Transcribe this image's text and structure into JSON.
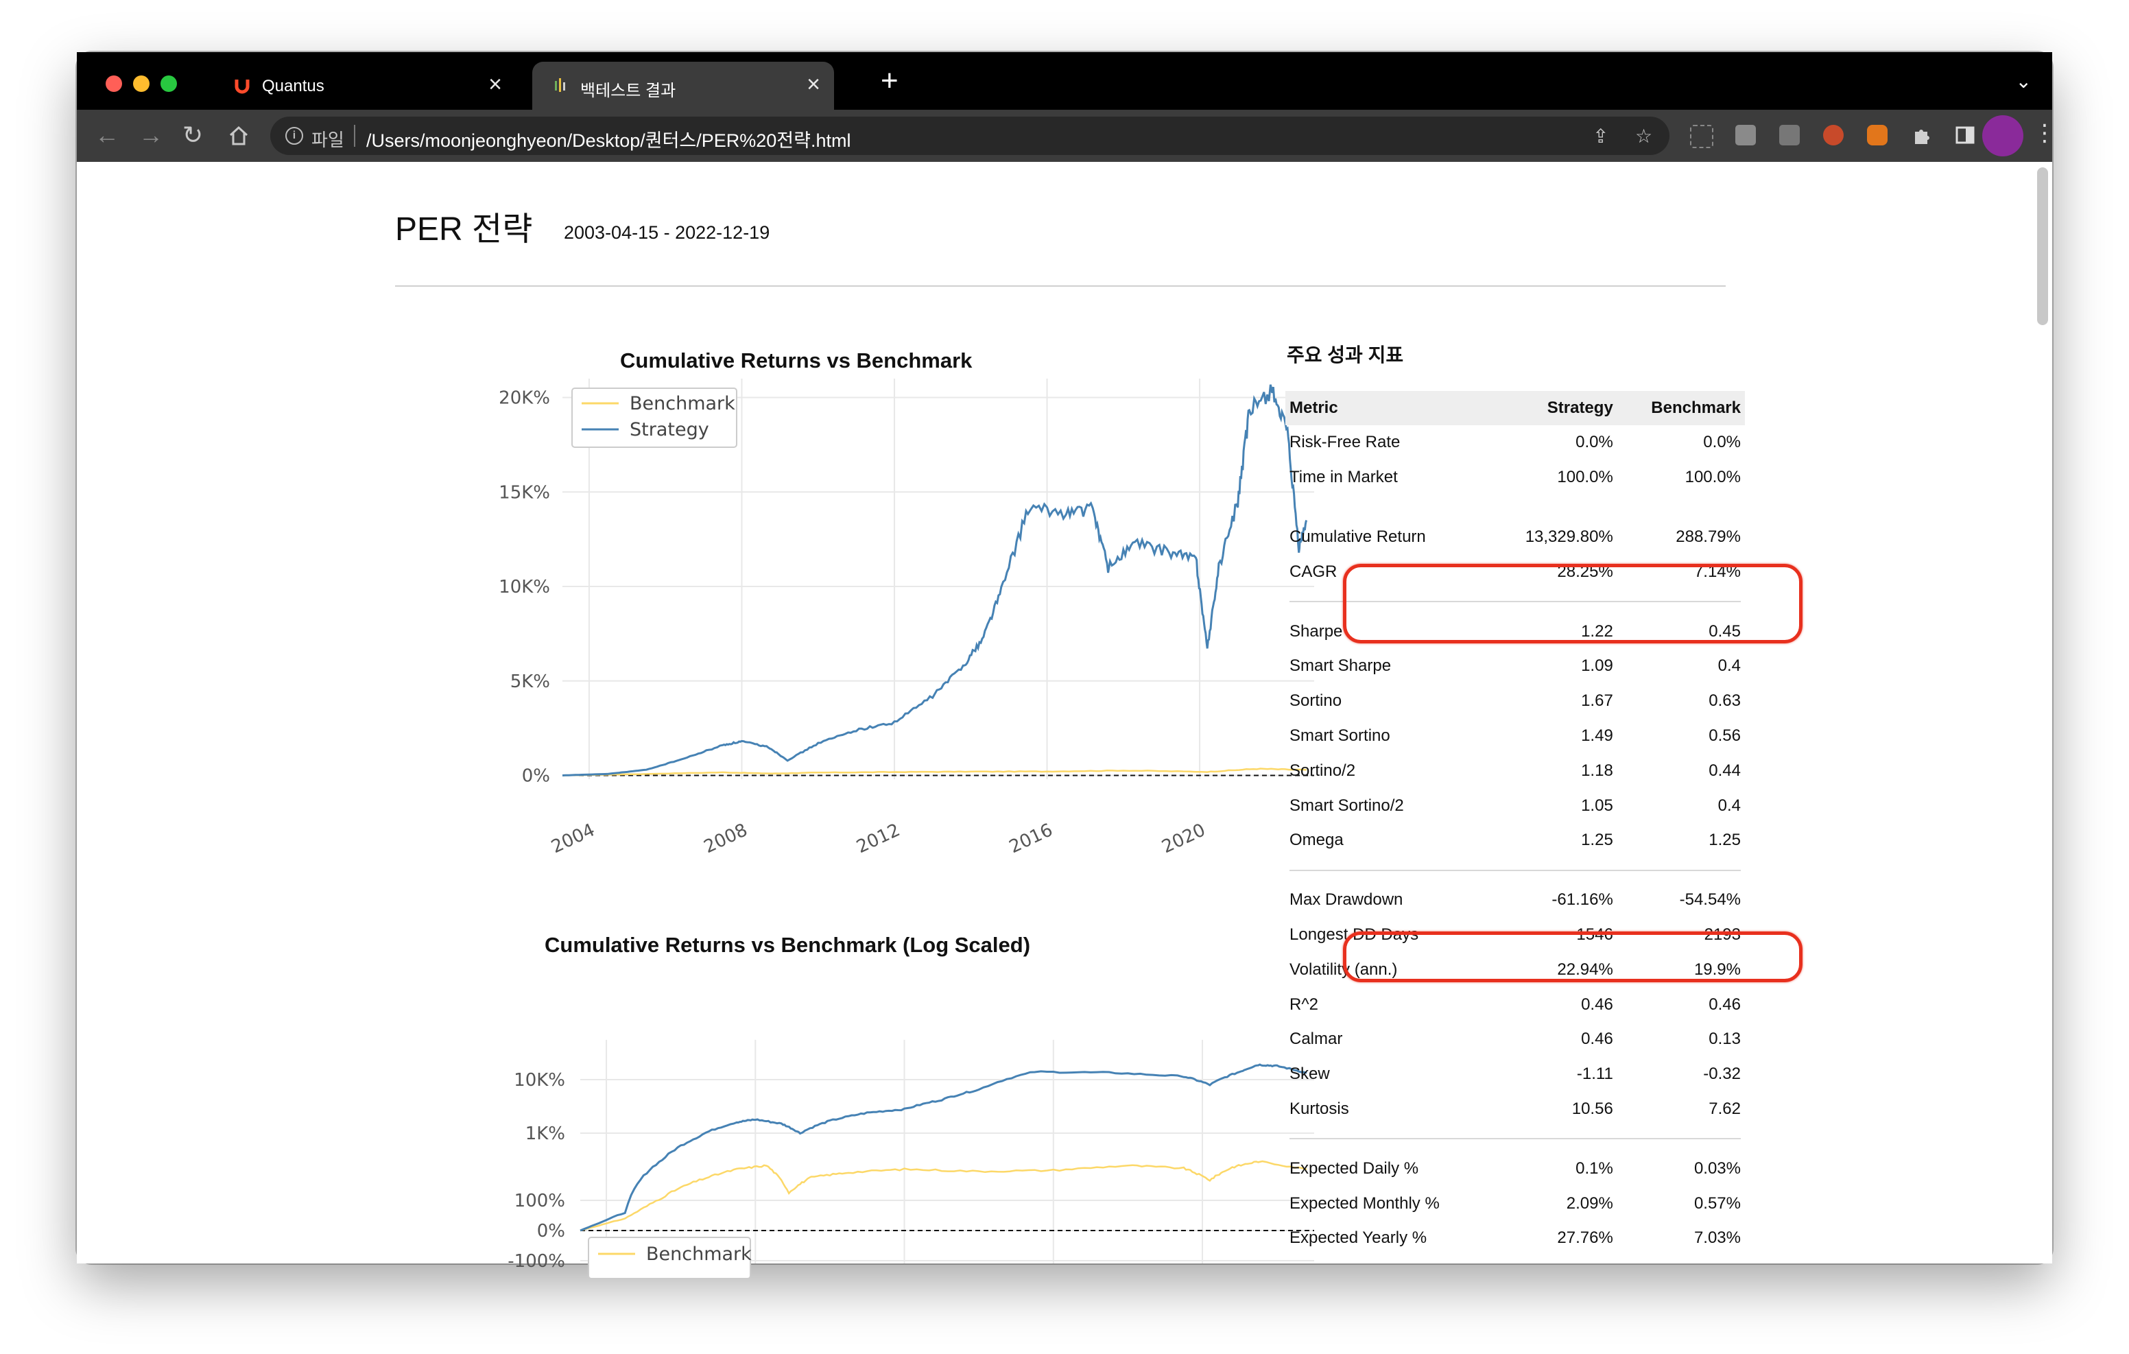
{
  "browser": {
    "tabs": [
      {
        "title": "Quantus",
        "active": false
      },
      {
        "title": "백테스트 결과",
        "active": true
      }
    ],
    "address": {
      "scheme_label": "파일",
      "url": "/Users/moonjeonghyeon/Desktop/퀀터스/PER%20전략.html"
    }
  },
  "report": {
    "title": "PER 전략",
    "date_range": "2003-04-15 - 2022-12-19"
  },
  "charts": {
    "cumulative_title": "Cumulative Returns vs Benchmark",
    "log_title": "Cumulative Returns vs Benchmark (Log Scaled)"
  },
  "chart_data": [
    {
      "type": "line",
      "title": "Cumulative Returns vs Benchmark",
      "x_ticks": [
        "2004",
        "2008",
        "2012",
        "2016",
        "2020"
      ],
      "y_ticks": [
        "0%",
        "5K%",
        "10K%",
        "15K%",
        "20K%"
      ],
      "ylim": [
        -200,
        21000
      ],
      "xlim": [
        2003.3,
        2023.0
      ],
      "legend": [
        "Benchmark",
        "Strategy"
      ],
      "legend_position": "top-left",
      "grid": true,
      "series": [
        {
          "name": "Strategy",
          "color": "#4682b4",
          "x": [
            2003.3,
            2004.5,
            2005.5,
            2006.5,
            2007.5,
            2008.0,
            2008.7,
            2009.2,
            2010.0,
            2011.0,
            2012.0,
            2013.0,
            2013.8,
            2014.3,
            2014.8,
            2015.5,
            2016.5,
            2017.2,
            2017.6,
            2018.3,
            2019.2,
            2019.9,
            2020.2,
            2020.5,
            2021.0,
            2021.3,
            2021.9,
            2022.3,
            2022.6,
            2022.8
          ],
          "values": [
            0,
            80,
            300,
            900,
            1600,
            1800,
            1500,
            800,
            1700,
            2400,
            2800,
            4200,
            5800,
            7200,
            9800,
            14100,
            13900,
            14100,
            11000,
            12300,
            11800,
            11500,
            6700,
            11000,
            14500,
            19200,
            20500,
            18000,
            12000,
            13500
          ]
        },
        {
          "name": "Benchmark",
          "color": "#fcd868",
          "x": [
            2003.3,
            2005.0,
            2007.5,
            2008.8,
            2010.0,
            2012.0,
            2014.0,
            2016.0,
            2018.0,
            2020.2,
            2021.5,
            2022.8
          ],
          "values": [
            0,
            60,
            160,
            100,
            150,
            180,
            200,
            210,
            260,
            190,
            350,
            289
          ]
        }
      ]
    },
    {
      "type": "line",
      "title": "Cumulative Returns vs Benchmark (Log Scaled)",
      "y_ticks": [
        "-100%",
        "0%",
        "100%",
        "1K%",
        "10K%"
      ],
      "y_scale": "symlog",
      "legend": [
        "Benchmark"
      ],
      "legend_position": "bottom-left",
      "grid": true,
      "series": [
        {
          "name": "Strategy",
          "color": "#4682b4",
          "x": [
            2003.3,
            2004.5,
            2005.5,
            2006.5,
            2007.5,
            2008.0,
            2008.7,
            2009.2,
            2010.0,
            2011.0,
            2012.0,
            2013.0,
            2014.0,
            2015.5,
            2017.5,
            2019.5,
            2020.2,
            2021.0,
            2021.5,
            2022.0,
            2022.8
          ],
          "values": [
            0,
            60,
            400,
            900,
            1600,
            1800,
            1500,
            1000,
            1700,
            2400,
            2800,
            4200,
            6500,
            14000,
            13500,
            11500,
            8000,
            14000,
            19000,
            18000,
            13300
          ]
        },
        {
          "name": "Benchmark",
          "color": "#fcd868",
          "x": [
            2003.3,
            2004.5,
            2005.5,
            2006.5,
            2007.5,
            2008.3,
            2008.9,
            2009.5,
            2010.5,
            2012.0,
            2014.0,
            2016.0,
            2018.0,
            2019.5,
            2020.2,
            2020.8,
            2021.5,
            2022.8
          ],
          "values": [
            0,
            40,
            110,
            200,
            290,
            330,
            130,
            220,
            260,
            290,
            270,
            280,
            330,
            300,
            200,
            310,
            380,
            289
          ]
        }
      ]
    }
  ],
  "metrics": {
    "title": "주요 성과 지표",
    "headers": {
      "metric": "Metric",
      "strategy": "Strategy",
      "benchmark": "Benchmark"
    },
    "rows": [
      {
        "label": "Risk-Free Rate",
        "strategy": "0.0%",
        "benchmark": "0.0%"
      },
      {
        "label": "Time in Market",
        "strategy": "100.0%",
        "benchmark": "100.0%"
      },
      {
        "label": "Cumulative Return",
        "strategy": "13,329.80%",
        "benchmark": "288.79%"
      },
      {
        "label": "CAGR",
        "strategy": "28.25%",
        "benchmark": "7.14%"
      },
      {
        "label": "Sharpe",
        "strategy": "1.22",
        "benchmark": "0.45"
      },
      {
        "label": "Smart Sharpe",
        "strategy": "1.09",
        "benchmark": "0.4"
      },
      {
        "label": "Sortino",
        "strategy": "1.67",
        "benchmark": "0.63"
      },
      {
        "label": "Smart Sortino",
        "strategy": "1.49",
        "benchmark": "0.56"
      },
      {
        "label": "Sortino/2",
        "strategy": "1.18",
        "benchmark": "0.44"
      },
      {
        "label": "Smart Sortino/2",
        "strategy": "1.05",
        "benchmark": "0.4"
      },
      {
        "label": "Omega",
        "strategy": "1.25",
        "benchmark": "1.25"
      },
      {
        "label": "Max Drawdown",
        "strategy": "-61.16%",
        "benchmark": "-54.54%"
      },
      {
        "label": "Longest DD Days",
        "strategy": "1546",
        "benchmark": "2193"
      },
      {
        "label": "Volatility (ann.)",
        "strategy": "22.94%",
        "benchmark": "19.9%"
      },
      {
        "label": "R^2",
        "strategy": "0.46",
        "benchmark": "0.46"
      },
      {
        "label": "Calmar",
        "strategy": "0.46",
        "benchmark": "0.13"
      },
      {
        "label": "Skew",
        "strategy": "-1.11",
        "benchmark": "-0.32"
      },
      {
        "label": "Kurtosis",
        "strategy": "10.56",
        "benchmark": "7.62"
      },
      {
        "label": "Expected Daily %",
        "strategy": "0.1%",
        "benchmark": "0.03%"
      },
      {
        "label": "Expected Monthly %",
        "strategy": "2.09%",
        "benchmark": "0.57%"
      },
      {
        "label": "Expected Yearly %",
        "strategy": "27.76%",
        "benchmark": "7.03%"
      }
    ]
  },
  "colors": {
    "highlight": "#e8301e",
    "strategy": "#4682b4",
    "benchmark": "#fcd868"
  }
}
